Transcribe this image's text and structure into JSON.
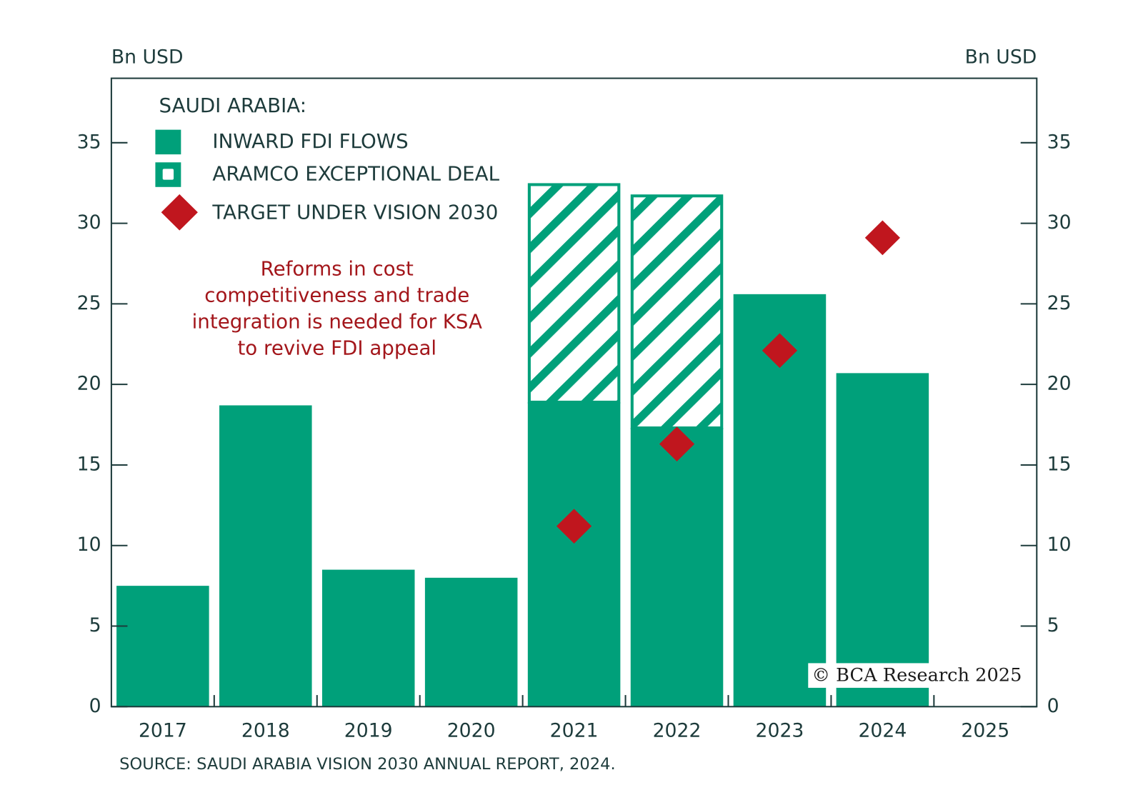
{
  "chart_data": {
    "type": "bar",
    "y_label": "Bn USD",
    "y2_label": "Bn USD",
    "legend_title": "SAUDI ARABIA:",
    "categories": [
      "2017",
      "2018",
      "2019",
      "2020",
      "2021",
      "2022",
      "2023",
      "2024",
      "2025"
    ],
    "series": [
      {
        "name": "INWARD FDI FLOWS",
        "color": "#00a07a",
        "values": [
          7.5,
          18.7,
          8.5,
          8.0,
          18.9,
          17.3,
          25.6,
          20.7,
          null
        ]
      },
      {
        "name": "ARAMCO EXCEPTIONAL DEAL",
        "color": "#00a07a",
        "values": [
          null,
          null,
          null,
          null,
          13.5,
          14.4,
          null,
          null,
          null
        ]
      },
      {
        "name": "TARGET UNDER VISION 2030",
        "color": "#c0161e",
        "values": [
          null,
          null,
          null,
          null,
          11.2,
          16.3,
          22.1,
          29.1,
          null
        ]
      }
    ],
    "ylim": [
      0,
      39
    ],
    "yticks": [
      0,
      5,
      10,
      15,
      20,
      25,
      30,
      35
    ],
    "y2lim": [
      0,
      39
    ],
    "y2ticks": [
      0,
      5,
      10,
      15,
      20,
      25,
      30,
      35
    ],
    "annotation": [
      "Reforms in cost",
      "competitiveness and trade",
      "integration is needed for KSA",
      "to revive FDI appeal"
    ],
    "copyright": "© BCA Research 2025",
    "source": "SOURCE: SAUDI ARABIA VISION 2030 ANNUAL REPORT, 2024."
  }
}
